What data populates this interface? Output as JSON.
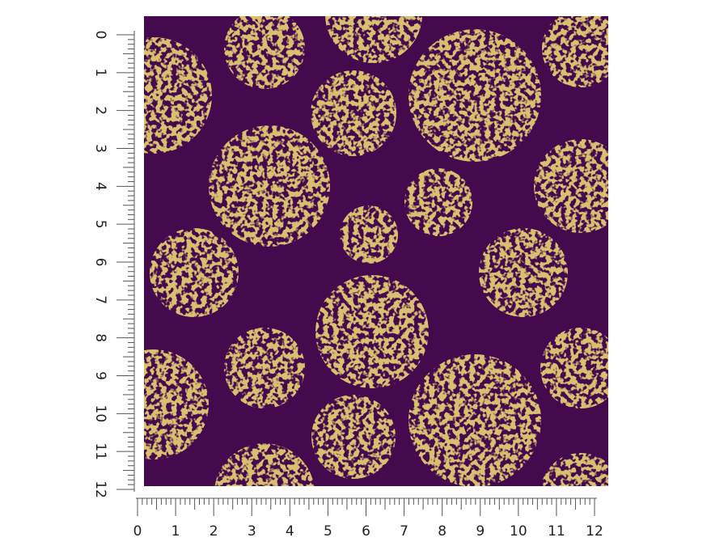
{
  "rulers": {
    "left": {
      "labels": [
        0,
        1,
        2,
        3,
        4,
        5,
        6,
        7,
        8,
        9,
        10,
        11,
        12
      ]
    },
    "bottom": {
      "labels": [
        0,
        1,
        2,
        3,
        4,
        5,
        6,
        7,
        8,
        9,
        10,
        11,
        12
      ]
    }
  }
}
